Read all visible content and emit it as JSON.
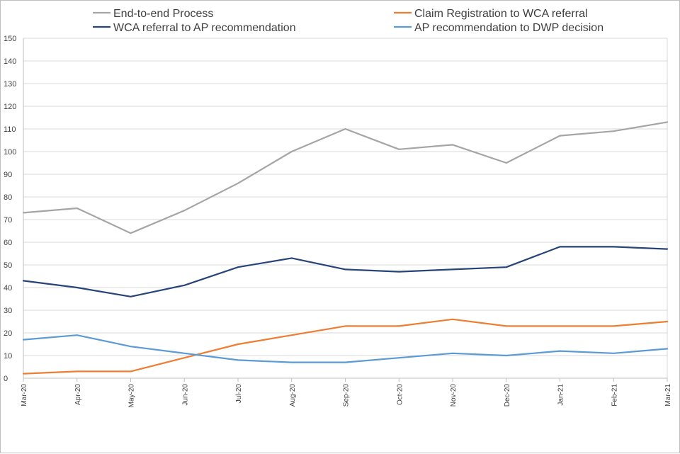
{
  "chart_data": {
    "type": "line",
    "title": "",
    "xlabel": "",
    "ylabel": "",
    "ylim": [
      0,
      150
    ],
    "ytick_step": 10,
    "grid": true,
    "legend_position": "top",
    "categories": [
      "Mar-20",
      "Apr-20",
      "May-20",
      "Jun-20",
      "Jul-20",
      "Aug-20",
      "Sep-20",
      "Oct-20",
      "Nov-20",
      "Dec-20",
      "Jan-21",
      "Feb-21",
      "Mar-21"
    ],
    "series": [
      {
        "name": "End-to-end Process",
        "color": "#a5a5a5",
        "values": [
          73,
          75,
          64,
          74,
          86,
          100,
          110,
          101,
          103,
          95,
          107,
          109,
          113
        ]
      },
      {
        "name": "Claim Registration to WCA referral",
        "color": "#ed7d31",
        "values": [
          2,
          3,
          3,
          9,
          15,
          19,
          23,
          23,
          26,
          23,
          23,
          23,
          25
        ]
      },
      {
        "name": "WCA referral to AP recommendation",
        "color": "#264478",
        "values": [
          43,
          40,
          36,
          41,
          49,
          53,
          48,
          47,
          48,
          49,
          58,
          58,
          57
        ]
      },
      {
        "name": "AP recommendation to DWP decision",
        "color": "#5b9bd5",
        "values": [
          17,
          19,
          14,
          11,
          8,
          7,
          7,
          9,
          11,
          10,
          12,
          11,
          13
        ]
      }
    ]
  }
}
